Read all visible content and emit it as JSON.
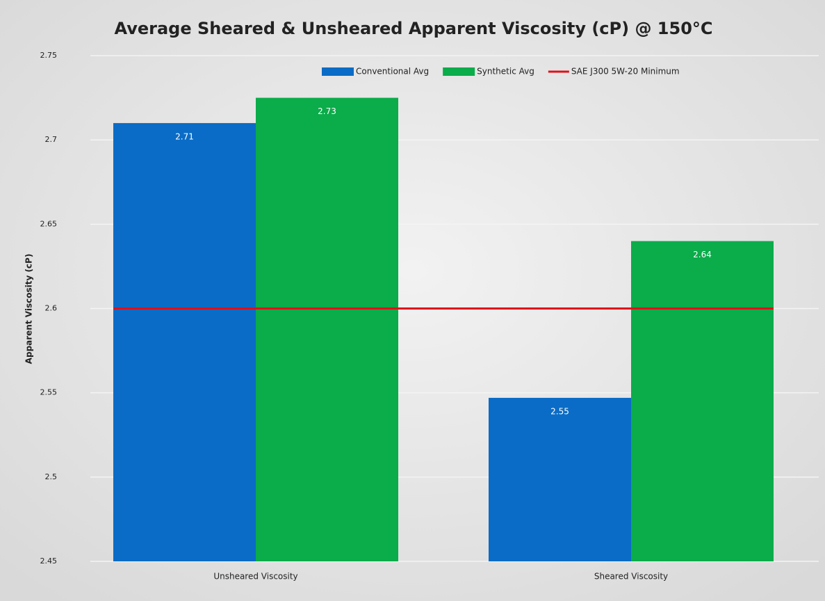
{
  "chart_data": {
    "type": "bar",
    "title": "Average Sheared & Unsheared Apparent Viscosity (cP) @ 150°C",
    "y_label": "Apparent Viscosity (cP)",
    "categories": [
      "Unsheared Viscosity",
      "Sheared Viscosity"
    ],
    "series": [
      {
        "name": "Conventional Avg",
        "color": "#0a6cc6",
        "values": [
          2.71,
          2.547
        ],
        "value_labels": [
          "2.71",
          "2.55"
        ]
      },
      {
        "name": "Synthetic Avg",
        "color": "#0bac4a",
        "values": [
          2.725,
          2.64
        ],
        "value_labels": [
          "2.73",
          "2.64"
        ]
      }
    ],
    "reference_lines": [
      {
        "name": "SAE J300 5W-20 Minimum",
        "color": "#e0101a",
        "value": 2.6
      }
    ],
    "ylim": [
      2.45,
      2.75
    ],
    "yticks": [
      2.45,
      2.5,
      2.55,
      2.6,
      2.65,
      2.7,
      2.75
    ],
    "grid": true
  }
}
